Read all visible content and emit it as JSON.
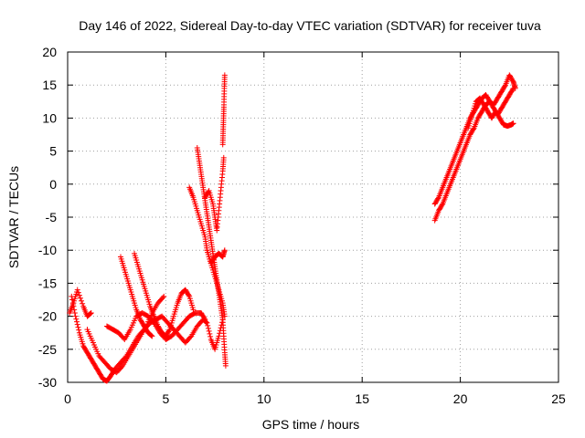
{
  "chart_data": {
    "type": "scatter",
    "title": "Day 146 of 2022, Sidereal Day-to-day VTEC variation (SDTVAR) for receiver tuva",
    "xlabel": "GPS time / hours",
    "ylabel": "SDTVAR / TECUs",
    "xlim": [
      0,
      25
    ],
    "ylim": [
      -30,
      20
    ],
    "xticks": [
      0,
      5,
      10,
      15,
      20,
      25
    ],
    "yticks": [
      -30,
      -25,
      -20,
      -15,
      -10,
      -5,
      0,
      5,
      10,
      15,
      20
    ],
    "grid": true,
    "marker": "+",
    "color": "#ff0000",
    "series": [
      {
        "name": "tuva",
        "tracks": [
          [
            [
              0.1,
              -19.5
            ],
            [
              0.3,
              -18.0
            ],
            [
              0.5,
              -16.0
            ],
            [
              0.8,
              -18.5
            ],
            [
              1.0,
              -20.0
            ],
            [
              1.2,
              -19.5
            ]
          ],
          [
            [
              0.2,
              -17.0
            ],
            [
              0.4,
              -20.0
            ],
            [
              0.6,
              -22.5
            ],
            [
              0.8,
              -24.5
            ],
            [
              1.0,
              -25.5
            ],
            [
              1.2,
              -26.5
            ],
            [
              1.4,
              -27.5
            ],
            [
              1.6,
              -28.5
            ],
            [
              1.8,
              -29.5
            ],
            [
              2.0,
              -29.8
            ],
            [
              2.2,
              -29.0
            ],
            [
              2.4,
              -28.0
            ],
            [
              2.7,
              -27.0
            ],
            [
              3.0,
              -26.0
            ],
            [
              3.3,
              -24.5
            ],
            [
              3.6,
              -23.0
            ],
            [
              3.9,
              -22.0
            ],
            [
              4.2,
              -21.0
            ],
            [
              4.5,
              -20.5
            ],
            [
              4.8,
              -20.0
            ],
            [
              5.1,
              -21.0
            ],
            [
              5.4,
              -22.0
            ],
            [
              5.7,
              -23.0
            ],
            [
              6.0,
              -24.0
            ],
            [
              6.3,
              -23.0
            ],
            [
              6.6,
              -21.5
            ],
            [
              6.9,
              -20.5
            ],
            [
              7.1,
              -21.0
            ],
            [
              7.3,
              -23.5
            ],
            [
              7.5,
              -25.0
            ],
            [
              7.7,
              -23.0
            ],
            [
              7.9,
              -20.5
            ]
          ],
          [
            [
              1.0,
              -22.0
            ],
            [
              1.3,
              -24.0
            ],
            [
              1.6,
              -26.0
            ],
            [
              1.9,
              -27.0
            ],
            [
              2.2,
              -28.0
            ],
            [
              2.5,
              -28.5
            ],
            [
              2.8,
              -27.5
            ],
            [
              3.1,
              -26.0
            ],
            [
              3.4,
              -24.5
            ],
            [
              3.7,
              -23.0
            ],
            [
              4.0,
              -21.5
            ],
            [
              4.3,
              -19.5
            ],
            [
              4.6,
              -18.0
            ],
            [
              4.9,
              -17.0
            ]
          ],
          [
            [
              2.0,
              -21.5
            ],
            [
              2.3,
              -22.0
            ],
            [
              2.6,
              -22.5
            ],
            [
              2.9,
              -23.5
            ],
            [
              3.2,
              -22.0
            ],
            [
              3.5,
              -20.0
            ],
            [
              3.8,
              -19.5
            ],
            [
              4.1,
              -20.0
            ],
            [
              4.4,
              -21.0
            ],
            [
              4.7,
              -22.5
            ],
            [
              5.0,
              -23.5
            ],
            [
              5.3,
              -23.0
            ],
            [
              5.6,
              -22.0
            ],
            [
              5.9,
              -21.0
            ],
            [
              6.2,
              -20.0
            ],
            [
              6.5,
              -19.5
            ],
            [
              6.8,
              -19.5
            ],
            [
              7.0,
              -20.5
            ]
          ],
          [
            [
              2.7,
              -11.0
            ],
            [
              2.9,
              -13.0
            ],
            [
              3.1,
              -15.0
            ],
            [
              3.3,
              -17.0
            ],
            [
              3.5,
              -19.0
            ],
            [
              3.7,
              -20.5
            ],
            [
              3.9,
              -21.5
            ],
            [
              4.1,
              -22.5
            ],
            [
              4.3,
              -23.0
            ]
          ],
          [
            [
              3.4,
              -10.5
            ],
            [
              3.6,
              -12.5
            ],
            [
              3.8,
              -14.5
            ],
            [
              4.0,
              -16.5
            ],
            [
              4.2,
              -18.5
            ],
            [
              4.4,
              -20.0
            ],
            [
              4.6,
              -21.5
            ],
            [
              4.8,
              -22.5
            ],
            [
              5.0,
              -23.0
            ],
            [
              5.2,
              -22.0
            ],
            [
              5.4,
              -20.0
            ],
            [
              5.6,
              -18.0
            ],
            [
              5.8,
              -16.5
            ],
            [
              6.0,
              -16.0
            ],
            [
              6.2,
              -17.0
            ],
            [
              6.4,
              -19.0
            ]
          ],
          [
            [
              6.2,
              -0.5
            ],
            [
              6.4,
              -2.0
            ],
            [
              6.6,
              -4.0
            ],
            [
              6.8,
              -6.0
            ],
            [
              7.0,
              -8.0
            ],
            [
              7.1,
              -10.0
            ],
            [
              7.3,
              -12.0
            ],
            [
              7.5,
              -14.0
            ],
            [
              7.7,
              -16.0
            ],
            [
              7.9,
              -18.0
            ],
            [
              8.0,
              -20.0
            ]
          ],
          [
            [
              6.6,
              5.5
            ],
            [
              6.7,
              3.5
            ],
            [
              6.8,
              1.5
            ],
            [
              6.9,
              -0.5
            ],
            [
              7.0,
              -2.5
            ],
            [
              7.1,
              -4.5
            ],
            [
              7.2,
              -6.5
            ],
            [
              7.3,
              -8.5
            ],
            [
              7.4,
              -10.5
            ],
            [
              7.5,
              -12.5
            ],
            [
              7.6,
              -14.5
            ],
            [
              7.7,
              -16.5
            ],
            [
              7.8,
              -18.5
            ],
            [
              7.9,
              -20.5
            ],
            [
              7.95,
              -23.0
            ],
            [
              8.0,
              -25.5
            ],
            [
              8.05,
              -27.5
            ]
          ],
          [
            [
              7.0,
              -2.0
            ],
            [
              7.2,
              -1.0
            ],
            [
              7.4,
              -3.0
            ],
            [
              7.5,
              -5.0
            ],
            [
              7.6,
              -7.0
            ],
            [
              7.7,
              -4.0
            ],
            [
              7.8,
              -1.0
            ],
            [
              7.9,
              2.0
            ],
            [
              7.95,
              4.0
            ]
          ],
          [
            [
              7.1,
              -10.0
            ],
            [
              7.3,
              -12.0
            ],
            [
              7.5,
              -11.0
            ],
            [
              7.7,
              -10.5
            ],
            [
              7.9,
              -11.0
            ],
            [
              8.0,
              -10.0
            ]
          ],
          [
            [
              7.9,
              6.0
            ],
            [
              7.92,
              8.0
            ],
            [
              7.94,
              10.0
            ],
            [
              7.96,
              12.0
            ],
            [
              7.98,
              14.5
            ],
            [
              8.0,
              16.5
            ]
          ],
          [
            [
              18.7,
              -3.0
            ],
            [
              18.9,
              -2.0
            ],
            [
              19.1,
              -0.5
            ],
            [
              19.3,
              1.0
            ],
            [
              19.5,
              2.5
            ],
            [
              19.7,
              4.0
            ],
            [
              19.9,
              5.5
            ],
            [
              20.1,
              7.0
            ],
            [
              20.3,
              8.5
            ],
            [
              20.5,
              10.0
            ],
            [
              20.7,
              11.0
            ],
            [
              20.9,
              12.0
            ],
            [
              21.1,
              13.0
            ],
            [
              21.3,
              13.5
            ],
            [
              21.5,
              12.5
            ],
            [
              21.7,
              12.0
            ],
            [
              21.9,
              13.0
            ],
            [
              22.1,
              14.0
            ],
            [
              22.3,
              15.0
            ],
            [
              22.5,
              16.5
            ],
            [
              22.7,
              15.5
            ],
            [
              22.8,
              14.5
            ]
          ],
          [
            [
              18.7,
              -5.5
            ],
            [
              18.9,
              -4.0
            ],
            [
              19.1,
              -3.0
            ],
            [
              19.3,
              -1.5
            ],
            [
              19.5,
              0.0
            ],
            [
              19.7,
              1.5
            ],
            [
              19.9,
              3.0
            ],
            [
              20.1,
              4.5
            ],
            [
              20.3,
              6.0
            ],
            [
              20.5,
              7.5
            ],
            [
              20.7,
              8.5
            ],
            [
              20.9,
              10.0
            ],
            [
              21.1,
              11.0
            ],
            [
              21.3,
              12.0
            ],
            [
              21.5,
              12.5
            ],
            [
              21.7,
              11.5
            ],
            [
              21.9,
              10.5
            ],
            [
              22.1,
              11.5
            ],
            [
              22.3,
              12.5
            ],
            [
              22.5,
              13.5
            ],
            [
              22.7,
              14.5
            ]
          ],
          [
            [
              20.4,
              8.5
            ],
            [
              20.6,
              10.5
            ],
            [
              20.8,
              12.5
            ],
            [
              21.0,
              13.0
            ],
            [
              21.2,
              12.0
            ],
            [
              21.4,
              11.0
            ],
            [
              21.6,
              10.0
            ],
            [
              21.8,
              11.0
            ],
            [
              22.0,
              10.0
            ],
            [
              22.2,
              9.0
            ],
            [
              22.4,
              8.8
            ],
            [
              22.6,
              9.0
            ],
            [
              22.7,
              9.2
            ]
          ]
        ]
      }
    ]
  }
}
